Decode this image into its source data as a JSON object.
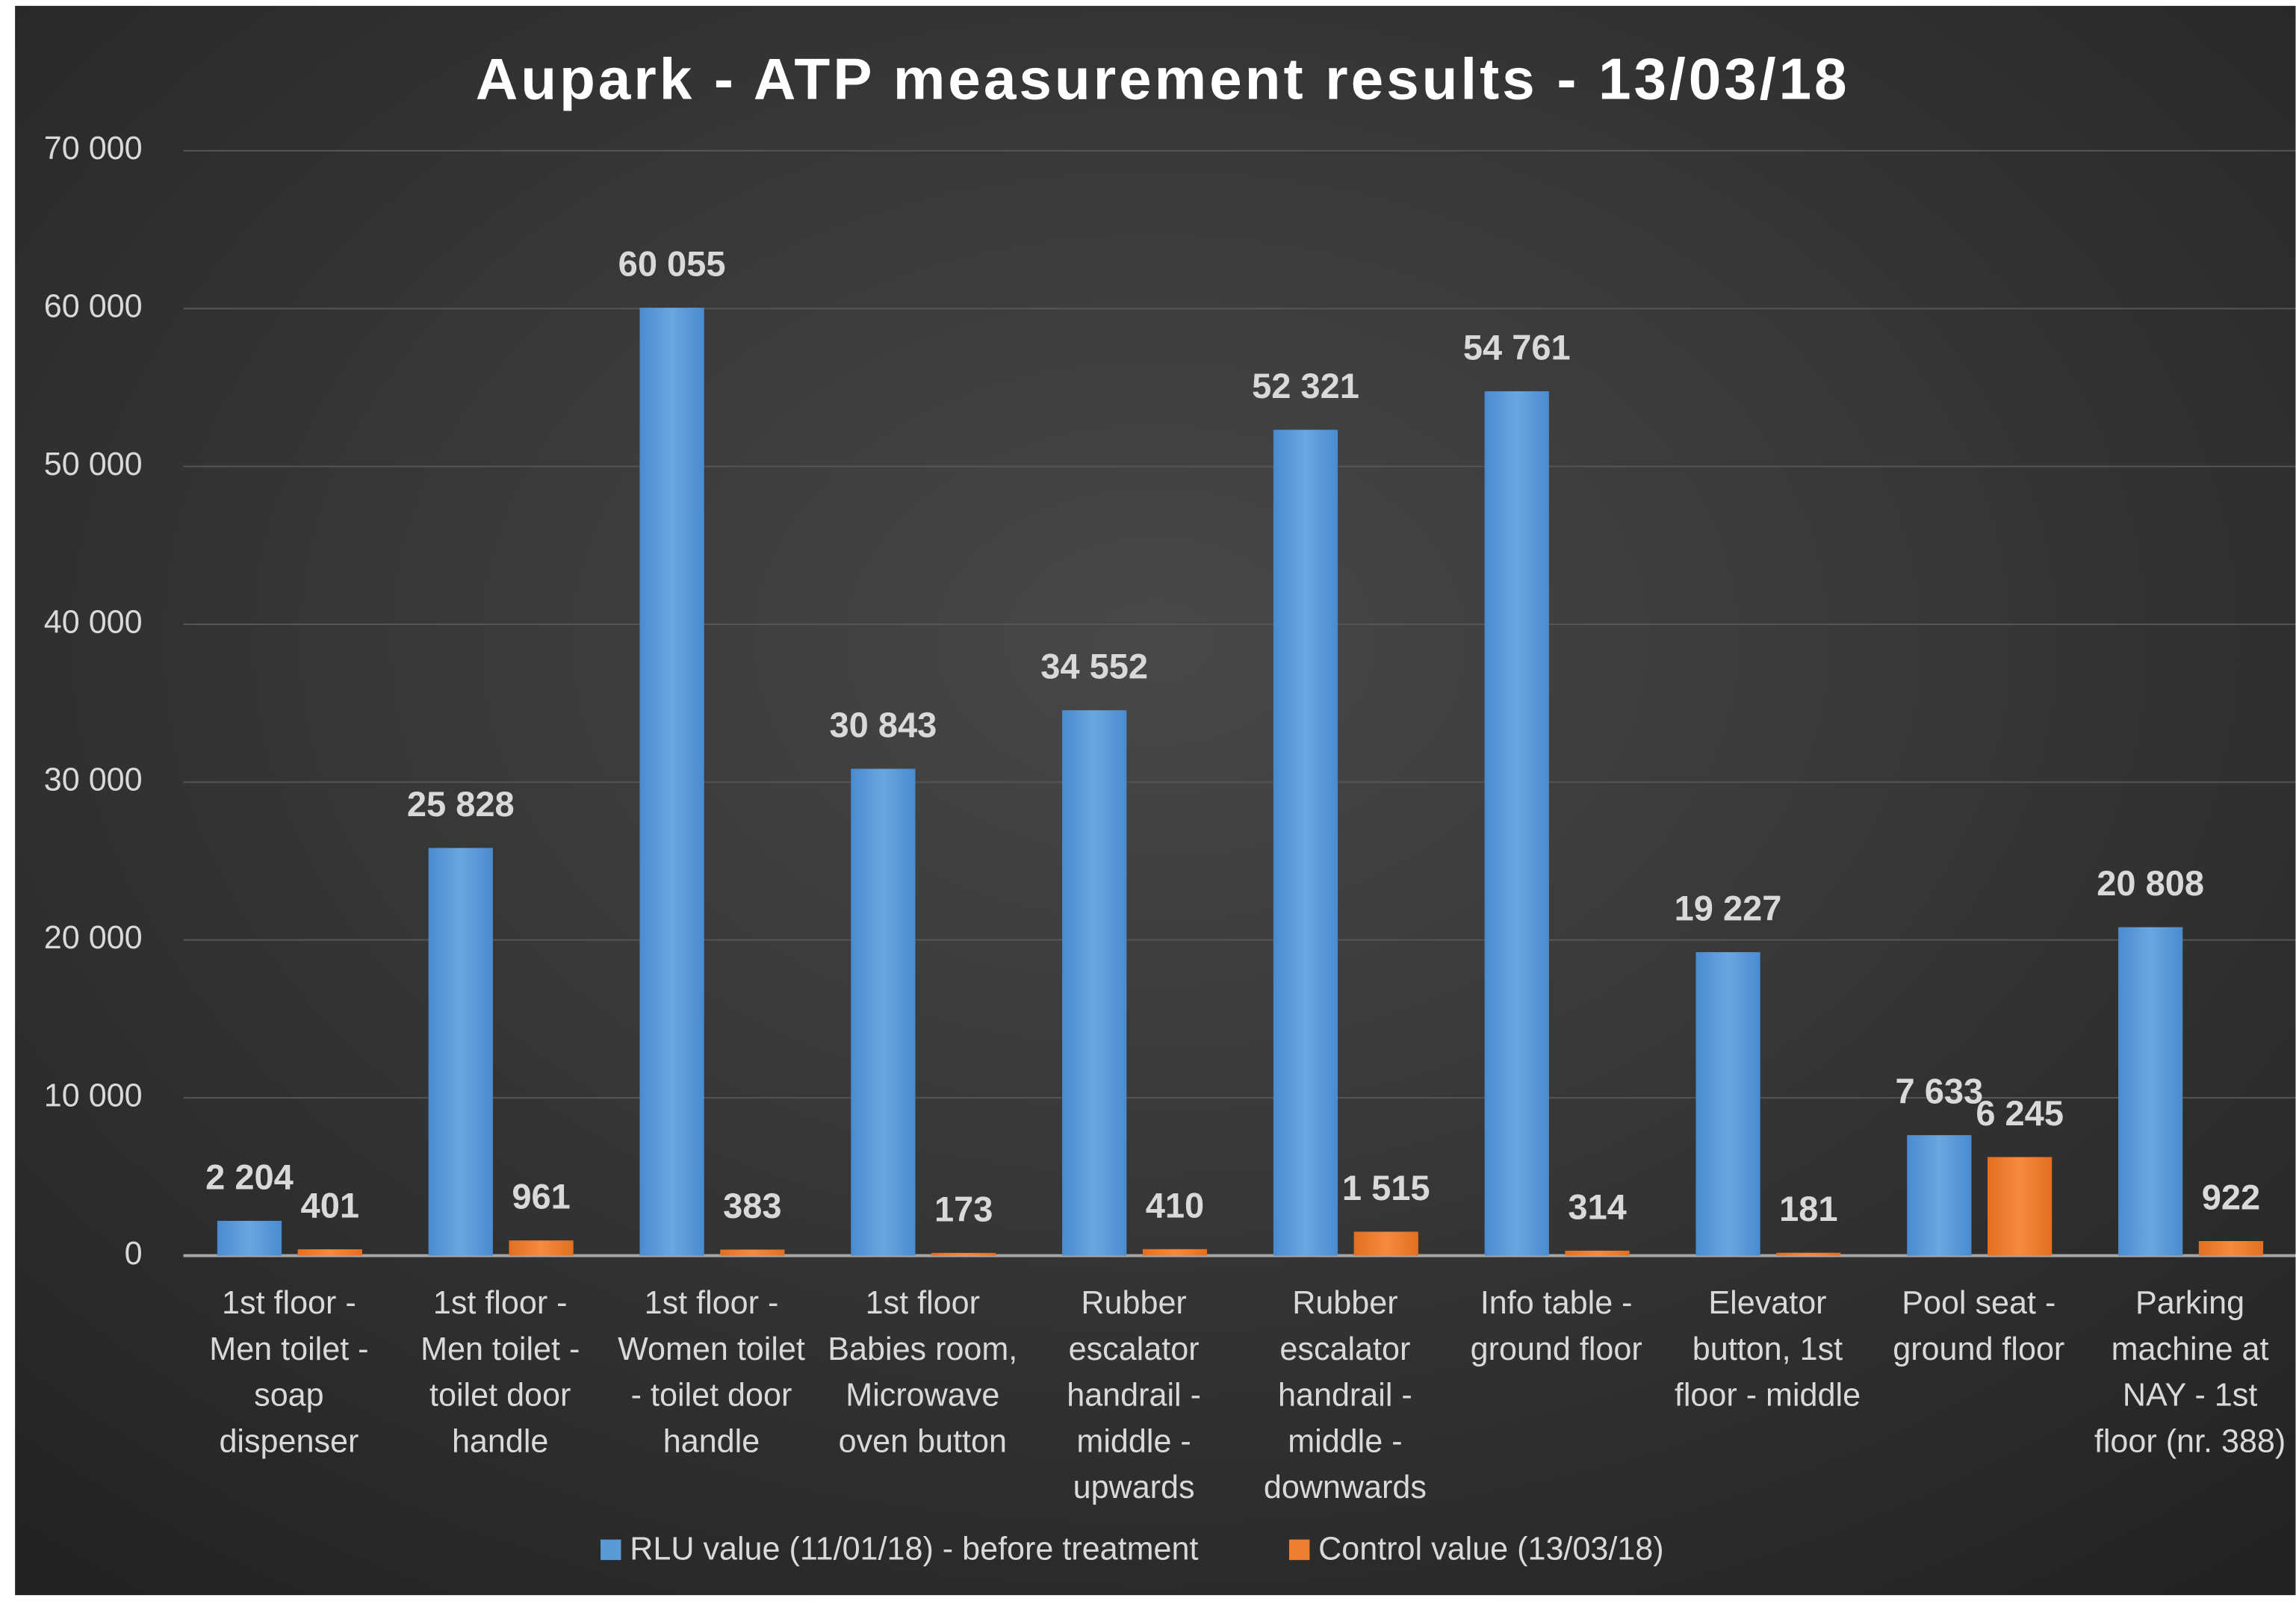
{
  "chart_data": {
    "type": "bar",
    "title": "Aupark - ATP measurement results - 13/03/18",
    "categories": [
      "1st floor - Men toilet - soap dispenser",
      "1st floor - Men toilet - toilet door handle",
      "1st floor - Women toilet - toilet door handle",
      "1st floor Babies room, Microwave oven button",
      "Rubber escalator handrail - middle - upwards",
      "Rubber escalator handrail - middle - downwards",
      "Info table - ground floor",
      "Elevator button, 1st floor - middle",
      "Pool seat - ground floor",
      "Parking machine at NAY - 1st floor (nr. 388)"
    ],
    "series": [
      {
        "name": "RLU value (11/01/18) - before treatment",
        "color": "#5b9bd5",
        "values": [
          2204,
          25828,
          60055,
          30843,
          34552,
          52321,
          54761,
          19227,
          7633,
          20808
        ],
        "value_labels": [
          "2 204",
          "25 828",
          "60 055",
          "30 843",
          "34 552",
          "52 321",
          "54 761",
          "19 227",
          "7 633",
          "20 808"
        ]
      },
      {
        "name": "Control value (13/03/18)",
        "color": "#ed7d31",
        "values": [
          401,
          961,
          383,
          173,
          410,
          1515,
          314,
          181,
          6245,
          922
        ],
        "value_labels": [
          "401",
          "961",
          "383",
          "173",
          "410",
          "1 515",
          "314",
          "181",
          "6 245",
          "922"
        ]
      }
    ],
    "ylim": [
      0,
      70000
    ],
    "yticks": [
      0,
      {
        "value": 10000,
        "label": "10 000"
      },
      {
        "value": 20000,
        "label": "20 000"
      },
      {
        "value": 30000,
        "label": "30 000"
      },
      {
        "value": 40000,
        "label": "40 000"
      },
      {
        "value": 50000,
        "label": "50 000"
      },
      {
        "value": 60000,
        "label": "60 000"
      },
      {
        "value": 70000,
        "label": "70 000"
      }
    ],
    "grid": true,
    "legend": "bottom"
  }
}
